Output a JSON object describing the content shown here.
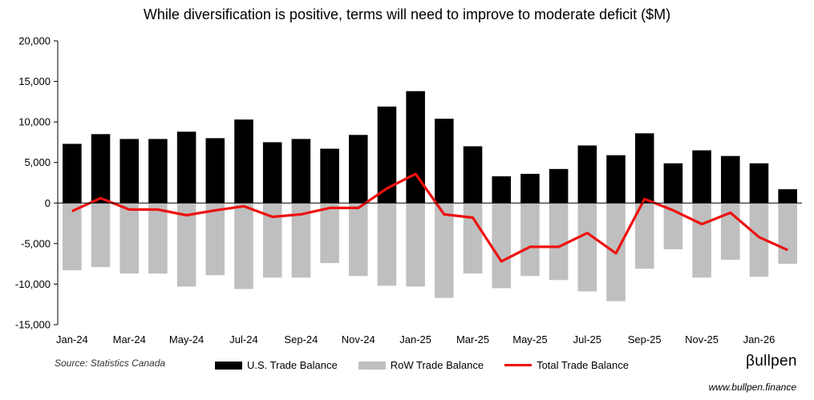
{
  "chart_data": {
    "type": "bar+line",
    "title": "While diversification is positive, terms will need to improve to moderate deficit ($M)",
    "categories": [
      "Jan-24",
      "Feb-24",
      "Mar-24",
      "Apr-24",
      "May-24",
      "Jun-24",
      "Jul-24",
      "Aug-24",
      "Sep-24",
      "Oct-24",
      "Nov-24",
      "Dec-24",
      "Jan-25",
      "Feb-25",
      "Mar-25",
      "Apr-25",
      "May-25",
      "Jun-25",
      "Jul-25",
      "Aug-25",
      "Sep-25",
      "Oct-25",
      "Nov-25",
      "Dec-25",
      "Jan-26",
      "Feb-26"
    ],
    "x_tick_labels": [
      "Jan-24",
      "",
      "Mar-24",
      "",
      "May-24",
      "",
      "Jul-24",
      "",
      "Sep-24",
      "",
      "Nov-24",
      "",
      "Jan-25",
      "",
      "Mar-25",
      "",
      "May-25",
      "",
      "Jul-25",
      "",
      "Sep-25",
      "",
      "Nov-25",
      "",
      "Jan-26",
      ""
    ],
    "series": [
      {
        "name": "U.S. Trade Balance",
        "kind": "bar",
        "color": "#000000",
        "values": [
          7300,
          8500,
          7900,
          7900,
          8800,
          8000,
          10300,
          7500,
          7900,
          6700,
          8400,
          11900,
          13800,
          10400,
          7000,
          3300,
          3600,
          4200,
          7100,
          5900,
          8600,
          4900,
          6500,
          5800,
          4900,
          1700
        ]
      },
      {
        "name": "RoW Trade Balance",
        "kind": "bar",
        "color": "#bfbfbf",
        "values": [
          -8300,
          -7900,
          -8700,
          -8700,
          -10300,
          -8900,
          -10600,
          -9200,
          -9200,
          -7400,
          -9000,
          -10200,
          -10300,
          -11700,
          -8700,
          -10500,
          -9000,
          -9500,
          -10900,
          -12100,
          -8100,
          -5700,
          -9200,
          -7000,
          -9100,
          -7500
        ]
      },
      {
        "name": "Total Trade Balance",
        "kind": "line",
        "color": "#ee1111",
        "values": [
          -1000,
          600,
          -800,
          -800,
          -1500,
          -900,
          -400,
          -1700,
          -1400,
          -600,
          -600,
          1800,
          3600,
          -1400,
          -1800,
          -7200,
          -5400,
          -5400,
          -3700,
          -6200,
          500,
          -900,
          -2600,
          -1200,
          -4200,
          -5800
        ]
      }
    ],
    "ylim": [
      -15000,
      20000
    ],
    "y_ticks": [
      20000,
      15000,
      10000,
      5000,
      0,
      -5000,
      -10000,
      -15000
    ],
    "y_tick_labels": [
      "20,000",
      "15,000",
      "10,000",
      "5,000",
      "0",
      "-5,000",
      "-10,000",
      "-15,000"
    ],
    "xlabel": "",
    "ylabel": "",
    "legend_position": "bottom"
  },
  "source_note": "Source: Statistics Canada",
  "brand": {
    "name": "βullpen",
    "url": "www.bullpen.finance"
  }
}
